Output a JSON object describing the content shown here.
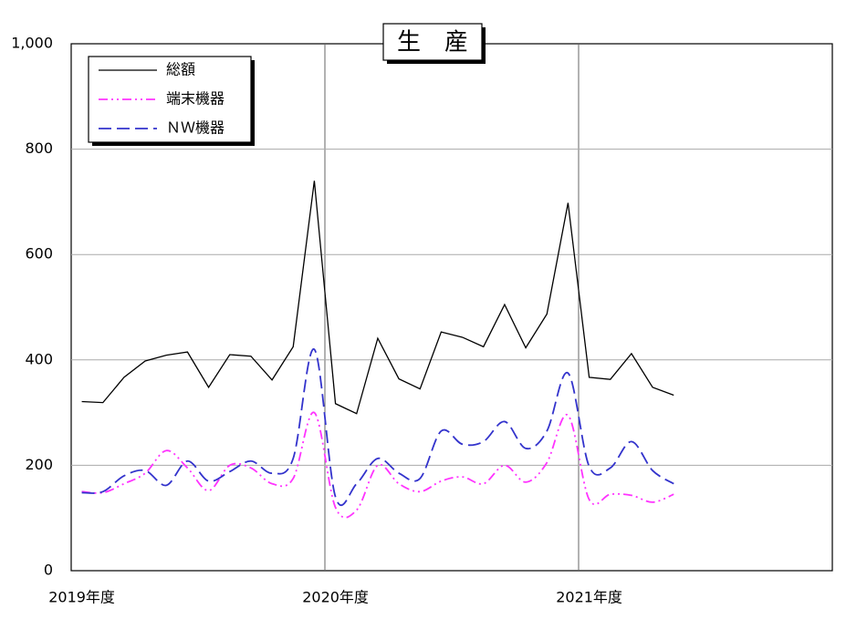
{
  "chart_data": {
    "type": "line",
    "title": "生　産",
    "categories": [
      "2019年度",
      null,
      null,
      null,
      null,
      null,
      null,
      null,
      null,
      null,
      null,
      null,
      "2020年度",
      null,
      null,
      null,
      null,
      null,
      null,
      null,
      null,
      null,
      null,
      null,
      "2021年度",
      null,
      null,
      null,
      null,
      null,
      null,
      null,
      null,
      null,
      null,
      null
    ],
    "series": [
      {
        "name": "総額",
        "color": "#000000",
        "dash": "solid",
        "smooth": false,
        "values": [
          321,
          319,
          367,
          398,
          409,
          415,
          348,
          410,
          407,
          362,
          425,
          740,
          317,
          298,
          441,
          364,
          345,
          453,
          443,
          425,
          505,
          423,
          487,
          698,
          367,
          363,
          412,
          348,
          333,
          null,
          null,
          null,
          null,
          null,
          null,
          null
        ]
      },
      {
        "name": "端末機器",
        "color": "#ff33ff",
        "dash": "dashdotdot",
        "smooth": true,
        "values": [
          150,
          148,
          165,
          185,
          228,
          195,
          152,
          200,
          195,
          165,
          175,
          300,
          120,
          115,
          200,
          165,
          150,
          170,
          178,
          165,
          200,
          168,
          205,
          295,
          135,
          145,
          143,
          130,
          145,
          null,
          null,
          null,
          null,
          null,
          null,
          null
        ]
      },
      {
        "name": "ＮＷ機器",
        "color": "#3333cc",
        "dash": "dash",
        "smooth": true,
        "values": [
          148,
          150,
          180,
          190,
          162,
          208,
          170,
          188,
          208,
          185,
          213,
          420,
          140,
          165,
          213,
          185,
          175,
          265,
          240,
          245,
          283,
          232,
          265,
          375,
          198,
          195,
          245,
          190,
          165,
          null,
          null,
          null,
          null,
          null,
          null,
          null
        ]
      }
    ],
    "ylim": [
      0,
      1000
    ],
    "yticks": [
      0,
      200,
      400,
      600,
      800,
      {
        "value": 1000,
        "label": "1,000"
      }
    ],
    "grid": true,
    "legend": "upper left"
  }
}
